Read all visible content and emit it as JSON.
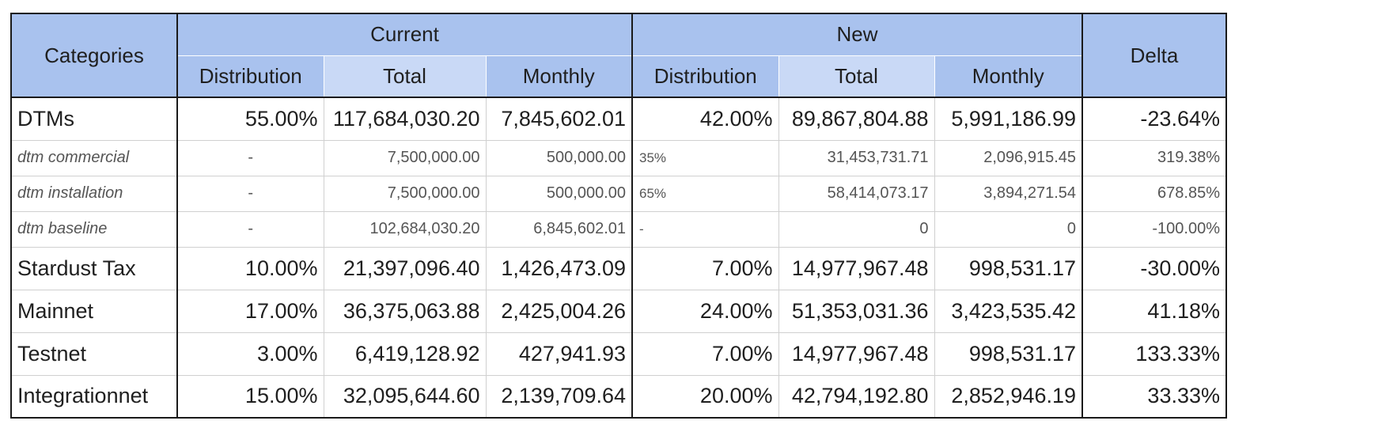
{
  "header": {
    "categories": "Categories",
    "current": "Current",
    "new": "New",
    "delta": "Delta",
    "sub": {
      "distribution": "Distribution",
      "total": "Total",
      "monthly": "Monthly"
    }
  },
  "rows": [
    {
      "kind": "major",
      "name": "DTMs",
      "cur_dist": "55.00%",
      "cur_total": "117,684,030.20",
      "cur_monthly": "7,845,602.01",
      "new_dist": "42.00%",
      "new_total": "89,867,804.88",
      "new_monthly": "5,991,186.99",
      "delta": "-23.64%"
    },
    {
      "kind": "minor",
      "name": "dtm commercial",
      "cur_dist": "-",
      "cur_total": "7,500,000.00",
      "cur_monthly": "500,000.00",
      "new_dist": "35%",
      "new_total": "31,453,731.71",
      "new_monthly": "2,096,915.45",
      "delta": "319.38%"
    },
    {
      "kind": "minor",
      "name": "dtm installation",
      "cur_dist": "-",
      "cur_total": "7,500,000.00",
      "cur_monthly": "500,000.00",
      "new_dist": "65%",
      "new_total": "58,414,073.17",
      "new_monthly": "3,894,271.54",
      "delta": "678.85%"
    },
    {
      "kind": "minor",
      "name": "dtm baseline",
      "cur_dist": "-",
      "cur_total": "102,684,030.20",
      "cur_monthly": "6,845,602.01",
      "new_dist": "-",
      "new_total": "0",
      "new_monthly": "0",
      "delta": "-100.00%"
    },
    {
      "kind": "major",
      "name": "Stardust Tax",
      "cur_dist": "10.00%",
      "cur_total": "21,397,096.40",
      "cur_monthly": "1,426,473.09",
      "new_dist": "7.00%",
      "new_total": "14,977,967.48",
      "new_monthly": "998,531.17",
      "delta": "-30.00%"
    },
    {
      "kind": "major",
      "name": "Mainnet",
      "cur_dist": "17.00%",
      "cur_total": "36,375,063.88",
      "cur_monthly": "2,425,004.26",
      "new_dist": "24.00%",
      "new_total": "51,353,031.36",
      "new_monthly": "3,423,535.42",
      "delta": "41.18%"
    },
    {
      "kind": "major",
      "name": "Testnet",
      "cur_dist": "3.00%",
      "cur_total": "6,419,128.92",
      "cur_monthly": "427,941.93",
      "new_dist": "7.00%",
      "new_total": "14,977,967.48",
      "new_monthly": "998,531.17",
      "delta": "133.33%"
    },
    {
      "kind": "major",
      "name": "Integrationnet",
      "cur_dist": "15.00%",
      "cur_total": "32,095,644.60",
      "cur_monthly": "2,139,709.64",
      "new_dist": "20.00%",
      "new_total": "42,794,192.80",
      "new_monthly": "2,852,946.19",
      "delta": "33.33%"
    }
  ]
}
